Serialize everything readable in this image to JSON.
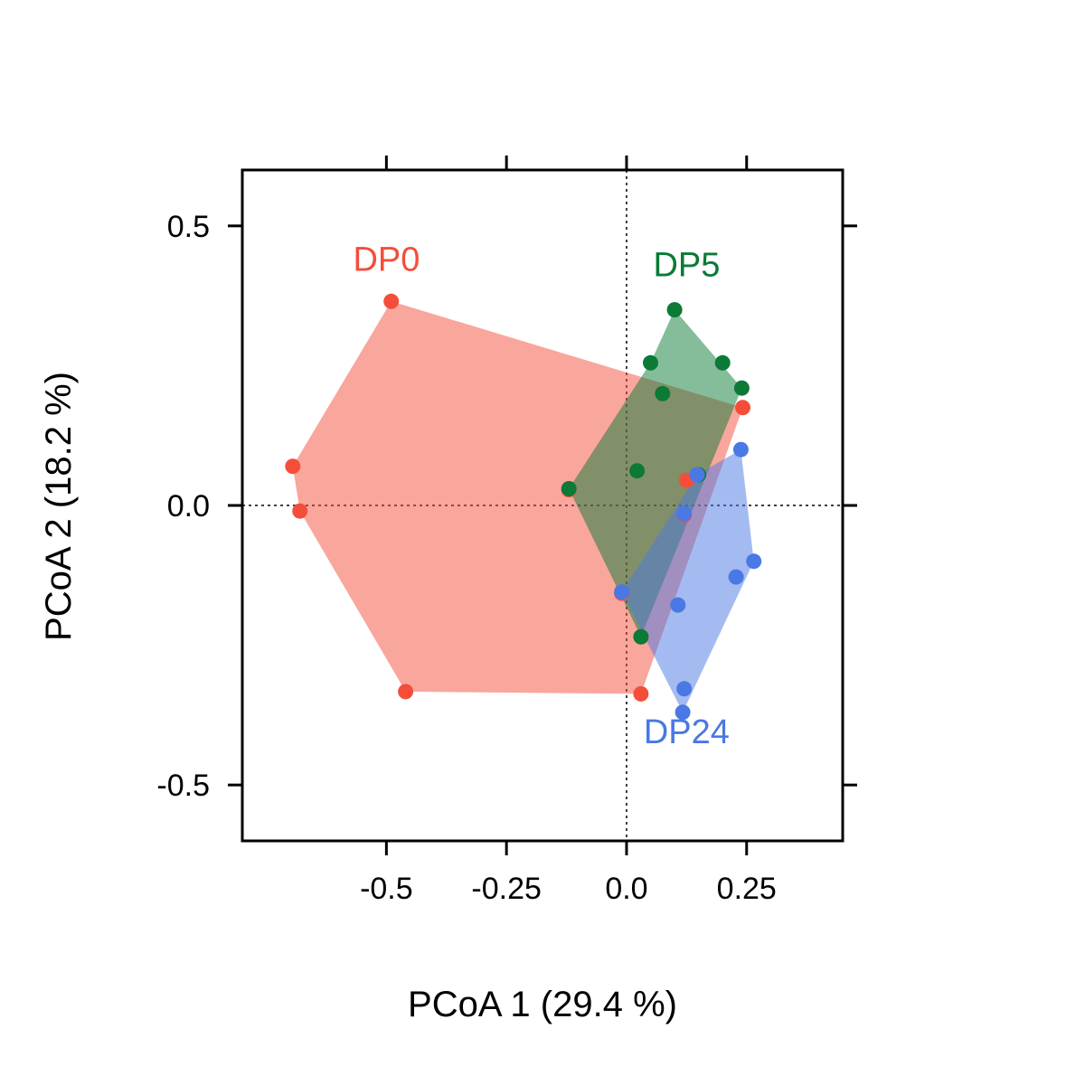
{
  "chart_data": {
    "type": "scatter",
    "title": "",
    "xlabel": "PCoA 1 (29.4 %)",
    "ylabel": "PCoA 2 (18.2 %)",
    "xlim": [
      -0.8,
      0.45
    ],
    "ylim": [
      -0.6,
      0.6
    ],
    "x_ticks": [
      {
        "value": -0.5,
        "label": "-0.5"
      },
      {
        "value": -0.25,
        "label": "-0.25"
      },
      {
        "value": 0.0,
        "label": "0.0"
      },
      {
        "value": 0.25,
        "label": "0.25"
      }
    ],
    "y_ticks": [
      {
        "value": 0.5,
        "label": "0.5"
      },
      {
        "value": 0.0,
        "label": "0.0"
      },
      {
        "value": -0.5,
        "label": "-0.5"
      }
    ],
    "reference_lines": {
      "x": 0,
      "y": 0,
      "style": "dotted"
    },
    "grid": false,
    "hull_opacity": 0.5,
    "series": [
      {
        "name": "DP0",
        "color": "#F44E3B",
        "label_position": [
          -0.5,
          0.42
        ],
        "points": [
          [
            -0.49,
            0.365
          ],
          [
            -0.695,
            0.07
          ],
          [
            -0.68,
            -0.01
          ],
          [
            -0.46,
            -0.333
          ],
          [
            0.03,
            -0.337
          ],
          [
            0.242,
            0.175
          ],
          [
            -0.12,
            0.028
          ],
          [
            0.125,
            0.045
          ],
          [
            0.12,
            -0.017
          ],
          [
            0.03,
            -0.235
          ],
          [
            -0.01,
            -0.157
          ]
        ],
        "hull": [
          [
            -0.49,
            0.365
          ],
          [
            0.242,
            0.175
          ],
          [
            0.03,
            -0.337
          ],
          [
            -0.46,
            -0.333
          ],
          [
            -0.68,
            -0.01
          ],
          [
            -0.695,
            0.07
          ]
        ]
      },
      {
        "name": "DP5",
        "color": "#0B7A35",
        "label_position": [
          0.125,
          0.41
        ],
        "points": [
          [
            0.1,
            0.35
          ],
          [
            0.05,
            0.255
          ],
          [
            0.2,
            0.255
          ],
          [
            0.24,
            0.21
          ],
          [
            0.075,
            0.2
          ],
          [
            0.022,
            0.062
          ],
          [
            0.15,
            0.055
          ],
          [
            -0.12,
            0.03
          ],
          [
            0.03,
            -0.235
          ]
        ],
        "hull": [
          [
            0.1,
            0.35
          ],
          [
            0.24,
            0.21
          ],
          [
            0.03,
            -0.235
          ],
          [
            -0.12,
            0.03
          ],
          [
            0.05,
            0.255
          ]
        ]
      },
      {
        "name": "DP24",
        "color": "#4A78E4",
        "label_position": [
          0.125,
          -0.425
        ],
        "points": [
          [
            0.238,
            0.1
          ],
          [
            0.265,
            -0.1
          ],
          [
            0.228,
            -0.128
          ],
          [
            0.107,
            -0.178
          ],
          [
            0.12,
            -0.328
          ],
          [
            0.117,
            -0.37
          ],
          [
            -0.01,
            -0.155
          ],
          [
            0.147,
            0.055
          ],
          [
            0.12,
            -0.015
          ]
        ],
        "hull": [
          [
            0.238,
            0.1
          ],
          [
            0.265,
            -0.1
          ],
          [
            0.117,
            -0.37
          ],
          [
            -0.01,
            -0.155
          ],
          [
            0.147,
            0.055
          ]
        ]
      }
    ]
  }
}
